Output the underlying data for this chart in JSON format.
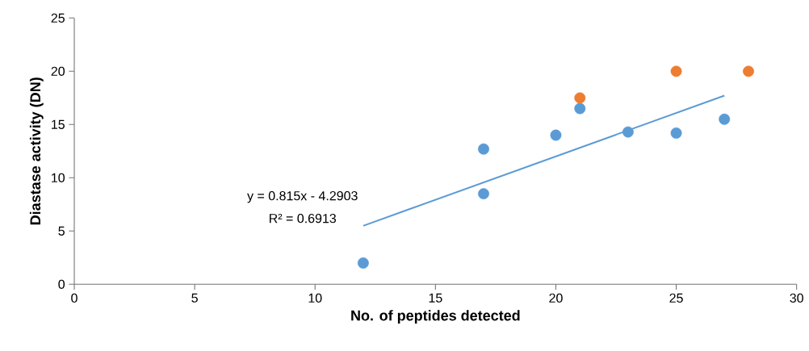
{
  "chart_data": {
    "type": "scatter",
    "xlabel": "No. of peptides detected",
    "ylabel": "Diastase activity (DN)",
    "xlim": [
      0,
      30
    ],
    "xticks": [
      0,
      5,
      10,
      15,
      20,
      25,
      30
    ],
    "ylim": [
      0,
      25
    ],
    "yticks": [
      0,
      5,
      10,
      15,
      20,
      25
    ],
    "marker": "circle",
    "series": [
      {
        "color": "#5b9bd5",
        "x": [
          12,
          17,
          17,
          20,
          21,
          23,
          25,
          27
        ],
        "values": [
          2,
          12.7,
          8.5,
          14,
          16.5,
          14.3,
          14.2,
          15.5
        ]
      },
      {
        "color": "#ed7d31",
        "x": [
          21,
          25,
          28
        ],
        "values": [
          17.5,
          20,
          20
        ]
      },
      {
        "type": "line",
        "marker": "none",
        "color": "#5b9bd5",
        "x": [
          12,
          27
        ],
        "values": [
          5.49,
          17.71
        ]
      }
    ],
    "annotations": [
      "y = 0.815x - 4.2903",
      "R² = 0.6913"
    ]
  }
}
